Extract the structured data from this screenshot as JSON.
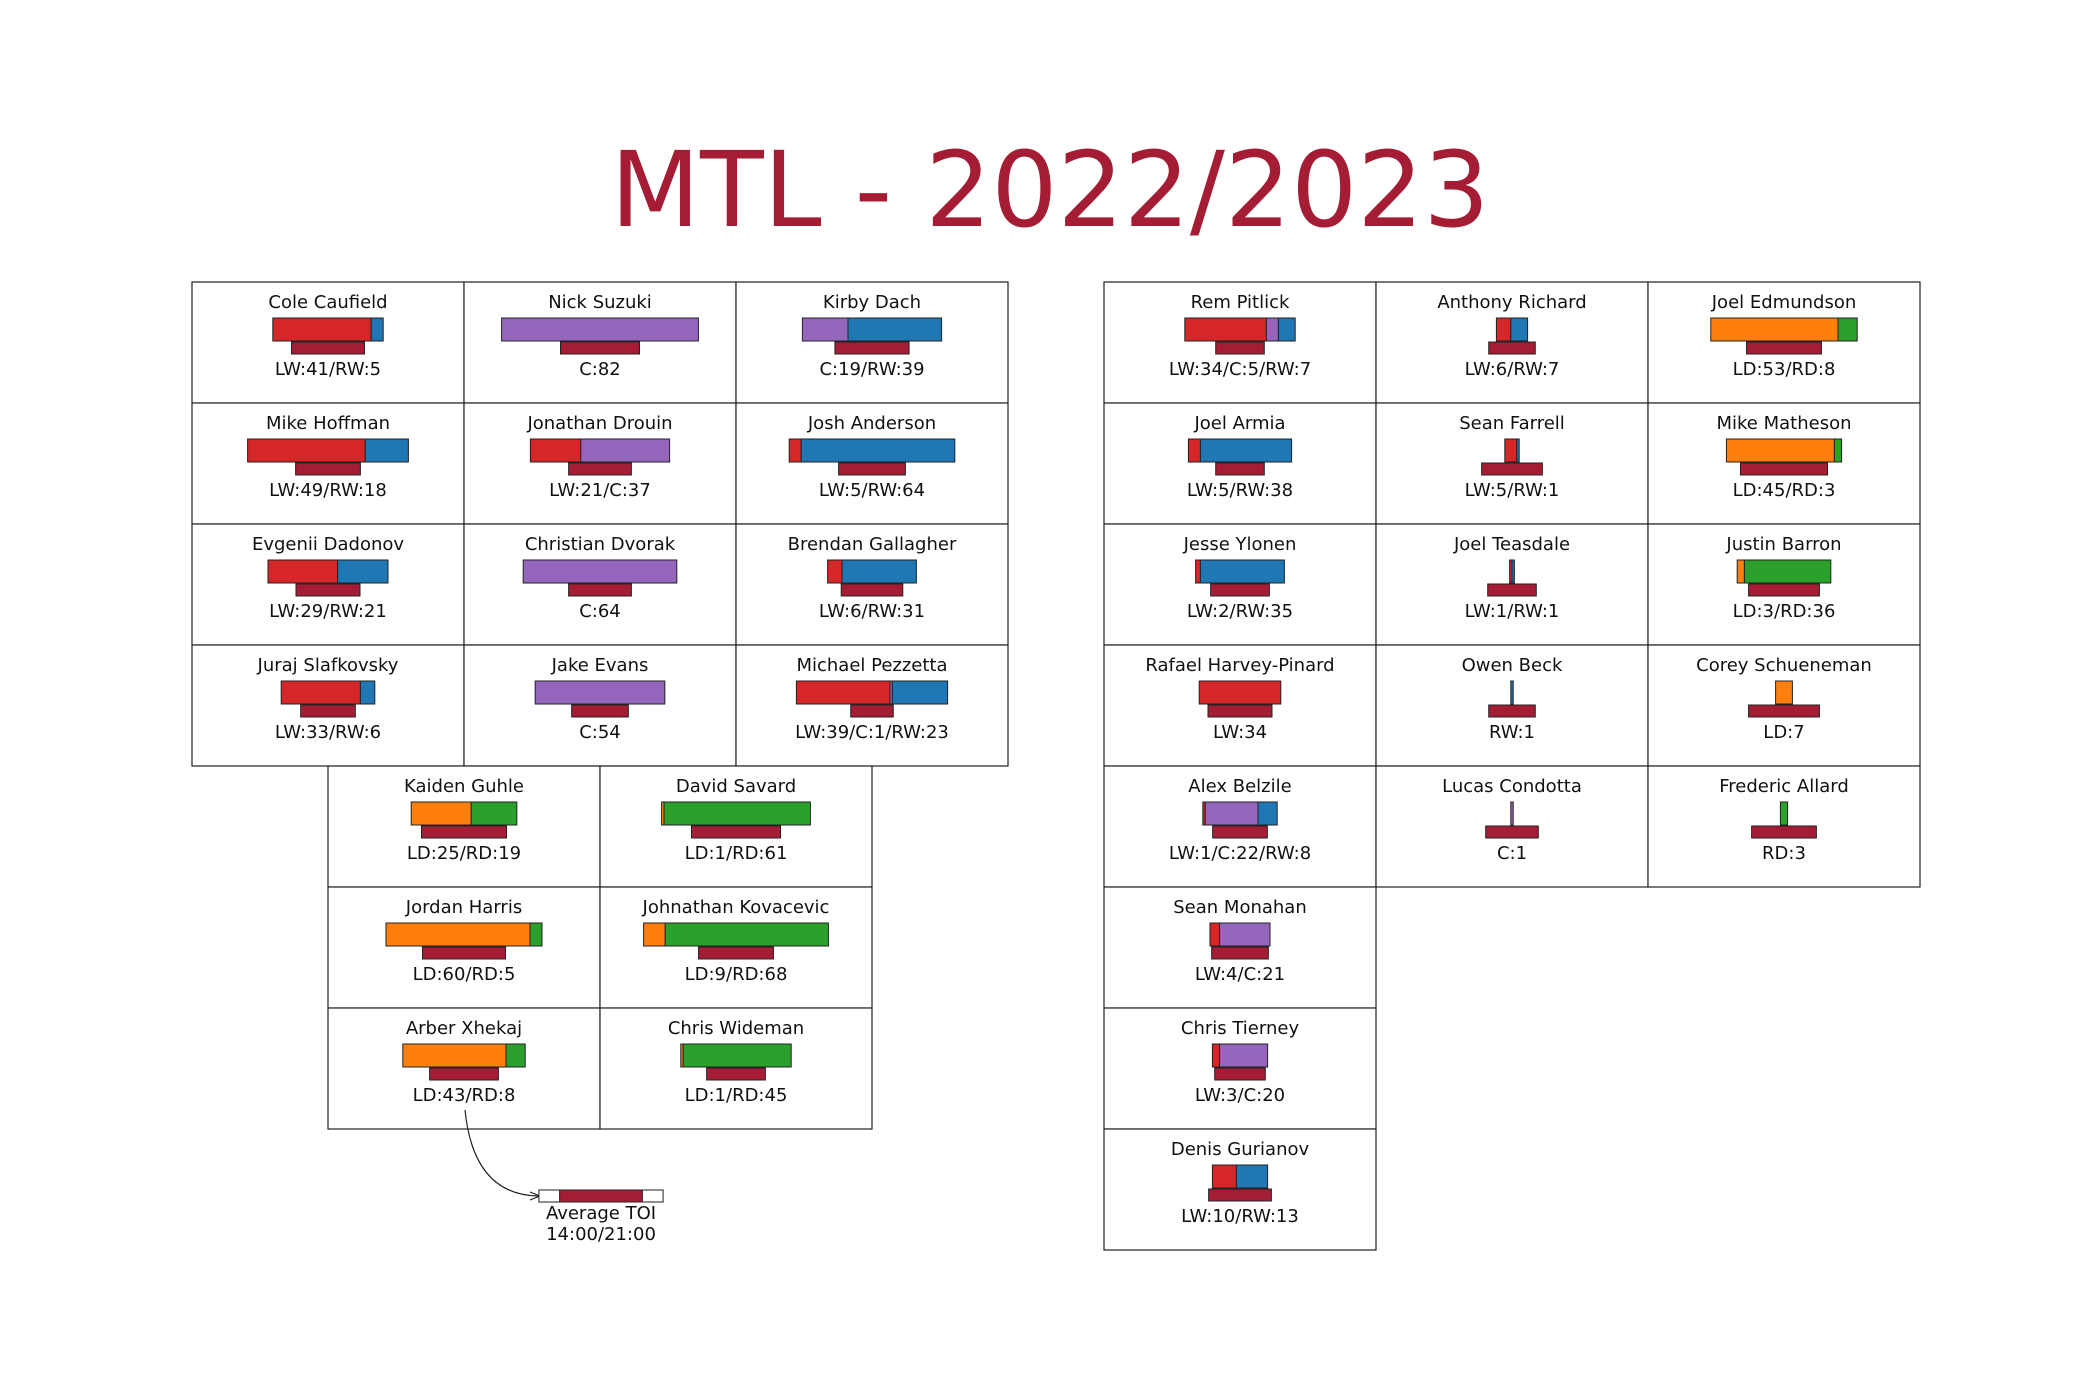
{
  "title": "MTL - 2022/2023",
  "colors": {
    "title": "#a51d35",
    "toi_bar": "#a51d35",
    "LW": "#d62728",
    "C": "#9467bd",
    "RW": "#1f77b4",
    "LD": "#ff7f0e",
    "RD": "#2ca02c"
  },
  "chart_data": {
    "type": "table",
    "title": "MTL - 2022/2023",
    "positions": [
      "LW",
      "C",
      "RW",
      "LD",
      "RD"
    ],
    "forwards_top": [
      {
        "name": "Cole Caufield",
        "label": "LW:41/RW:5",
        "games": {
          "LW": 41,
          "RW": 5
        },
        "toi_min": 18.0
      },
      {
        "name": "Nick Suzuki",
        "label": "C:82",
        "games": {
          "C": 82
        },
        "toi_min": 19.5
      },
      {
        "name": "Kirby Dach",
        "label": "C:19/RW:39",
        "games": {
          "C": 19,
          "RW": 39
        },
        "toi_min": 18.3
      },
      {
        "name": "Mike Hoffman",
        "label": "LW:49/RW:18",
        "games": {
          "LW": 49,
          "RW": 18
        },
        "toi_min": 16.0
      },
      {
        "name": "Jonathan Drouin",
        "label": "LW:21/C:37",
        "games": {
          "LW": 21,
          "C": 37
        },
        "toi_min": 15.5
      },
      {
        "name": "Josh Anderson",
        "label": "LW:5/RW:64",
        "games": {
          "LW": 5,
          "RW": 64
        },
        "toi_min": 16.5
      },
      {
        "name": "Evgenii Dadonov",
        "label": "LW:29/RW:21",
        "games": {
          "LW": 29,
          "RW": 21
        },
        "toi_min": 15.8
      },
      {
        "name": "Christian Dvorak",
        "label": "C:64",
        "games": {
          "C": 64
        },
        "toi_min": 15.5
      },
      {
        "name": "Brendan Gallagher",
        "label": "LW:6/RW:31",
        "games": {
          "LW": 6,
          "RW": 31
        },
        "toi_min": 15.2
      },
      {
        "name": "Juraj Slafkovsky",
        "label": "LW:33/RW:6",
        "games": {
          "LW": 33,
          "RW": 6
        },
        "toi_min": 13.5
      },
      {
        "name": "Jake Evans",
        "label": "C:54",
        "games": {
          "C": 54
        },
        "toi_min": 14.0
      },
      {
        "name": "Michael Pezzetta",
        "label": "LW:39/C:1/RW:23",
        "games": {
          "LW": 39,
          "C": 1,
          "RW": 23
        },
        "toi_min": 10.5
      }
    ],
    "defense": [
      {
        "name": "Kaiden Guhle",
        "label": "LD:25/RD:19",
        "games": {
          "LD": 25,
          "RD": 19
        },
        "toi_min": 21.0
      },
      {
        "name": "David Savard",
        "label": "LD:1/RD:61",
        "games": {
          "LD": 1,
          "RD": 61
        },
        "toi_min": 22.0
      },
      {
        "name": "Jordan Harris",
        "label": "LD:60/RD:5",
        "games": {
          "LD": 60,
          "RD": 5
        },
        "toi_min": 20.5
      },
      {
        "name": "Johnathan Kovacevic",
        "label": "LD:9/RD:68",
        "games": {
          "LD": 9,
          "RD": 68
        },
        "toi_min": 18.5
      },
      {
        "name": "Arber Xhekaj",
        "label": "LD:43/RD:8",
        "games": {
          "LD": 43,
          "RD": 8
        },
        "toi_min": 17.0
      },
      {
        "name": "Chris Wideman",
        "label": "LD:1/RD:45",
        "games": {
          "LD": 1,
          "RD": 45
        },
        "toi_min": 14.5
      }
    ],
    "others": [
      {
        "name": "Rem Pitlick",
        "label": "LW:34/C:5/RW:7",
        "games": {
          "LW": 34,
          "C": 5,
          "RW": 7
        },
        "toi_min": 12.0
      },
      {
        "name": "Anthony Richard",
        "label": "LW:6/RW:7",
        "games": {
          "LW": 6,
          "RW": 7
        },
        "toi_min": 11.5
      },
      {
        "name": "Joel Edmundson",
        "label": "LD:53/RD:8",
        "games": {
          "LD": 53,
          "RD": 8
        },
        "toi_min": 18.5
      },
      {
        "name": "Joel Armia",
        "label": "LW:5/RW:38",
        "games": {
          "LW": 5,
          "RW": 38
        },
        "toi_min": 12.0
      },
      {
        "name": "Sean Farrell",
        "label": "LW:5/RW:1",
        "games": {
          "LW": 5,
          "RW": 1
        },
        "toi_min": 15.0
      },
      {
        "name": "Mike Matheson",
        "label": "LD:45/RD:3",
        "games": {
          "LD": 45,
          "RD": 3
        },
        "toi_min": 21.5
      },
      {
        "name": "Jesse Ylonen",
        "label": "LW:2/RW:35",
        "games": {
          "LW": 2,
          "RW": 35
        },
        "toi_min": 14.5
      },
      {
        "name": "Joel Teasdale",
        "label": "LW:1/RW:1",
        "games": {
          "LW": 1,
          "RW": 1
        },
        "toi_min": 12.0
      },
      {
        "name": "Justin Barron",
        "label": "LD:3/RD:36",
        "games": {
          "LD": 3,
          "RD": 36
        },
        "toi_min": 17.5
      },
      {
        "name": "Rafael Harvey-Pinard",
        "label": "LW:34",
        "games": {
          "LW": 34
        },
        "toi_min": 15.8
      },
      {
        "name": "Owen Beck",
        "label": "RW:1",
        "games": {
          "RW": 1
        },
        "toi_min": 11.5
      },
      {
        "name": "Corey Schueneman",
        "label": "LD:7",
        "games": {
          "LD": 7
        },
        "toi_min": 17.5
      },
      {
        "name": "Alex Belzile",
        "label": "LW:1/C:22/RW:8",
        "games": {
          "LW": 1,
          "C": 22,
          "RW": 8
        },
        "toi_min": 13.5
      },
      {
        "name": "Lucas Condotta",
        "label": "C:1",
        "games": {
          "C": 1
        },
        "toi_min": 13.0
      },
      {
        "name": "Frederic Allard",
        "label": "RD:3",
        "games": {
          "RD": 3
        },
        "toi_min": 16.0
      },
      {
        "name": "Sean Monahan",
        "label": "LW:4/C:21",
        "games": {
          "LW": 4,
          "C": 21
        },
        "toi_min": 14.0
      },
      {
        "name": "Chris Tierney",
        "label": "LW:3/C:20",
        "games": {
          "LW": 3,
          "C": 20
        },
        "toi_min": 12.5
      },
      {
        "name": "Denis Gurianov",
        "label": "LW:10/RW:13",
        "games": {
          "LW": 10,
          "RW": 13
        },
        "toi_min": 15.5
      }
    ],
    "legend": {
      "label": "Average TOI",
      "range_label": "14:00/21:00",
      "scale_outer_min": 21.0,
      "scale_inner_min": 14.0
    }
  }
}
